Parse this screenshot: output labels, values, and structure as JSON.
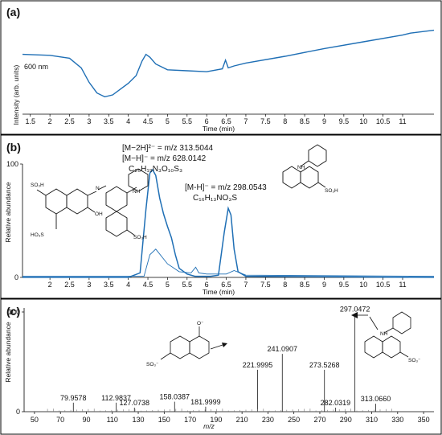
{
  "panel_a": {
    "label": "(a)",
    "ylabel": "Intensity (arb. units)",
    "xlabel": "Time (min)",
    "trace_label": "600 nm",
    "colors": {
      "line": "#1f6fb5"
    }
  },
  "panel_b": {
    "label": "(b)",
    "ylabel": "Relative abundance",
    "xlabel": "Time (min)",
    "annotations": {
      "ion1": "[M−2H]²⁻ = m/z 313.5044",
      "ion2": "[M−H]⁻ = m/z 628.0142",
      "formula1": "C₂₆H₁₉N₃O₁₀S₃",
      "ion3": "[M-H]⁻ = m/z 298.0543",
      "formula2": "C₁₆H₁₃NO₃S"
    },
    "mol_labels": {
      "so3h": "SO₃H",
      "ho3s": "HO₃S",
      "oh": "OH",
      "nh": "NH",
      "n": "N"
    }
  },
  "panel_c": {
    "label": "(c)",
    "ylabel": "Relative abundance",
    "xlabel": "m/z",
    "mol_labels": {
      "so3": "SO₃⁻",
      "o": "O⁻",
      "nh": "NH",
      "o3s": "S"
    }
  },
  "chart_data": [
    {
      "type": "line",
      "panel": "a",
      "xlabel": "Time (min)",
      "ylabel": "Intensity (arb. units)",
      "xlim": [
        1.3,
        11.8
      ],
      "ylim": [
        0,
        100
      ],
      "xticks": [
        1.5,
        2,
        2.5,
        3,
        3.5,
        4,
        4.5,
        5,
        5.5,
        6,
        6.5,
        7,
        7.5,
        8,
        8.5,
        9,
        9.5,
        10,
        10.5,
        11
      ],
      "x": [
        1.3,
        2.0,
        2.5,
        2.8,
        3.0,
        3.2,
        3.4,
        3.6,
        3.8,
        4.0,
        4.2,
        4.35,
        4.45,
        4.55,
        4.7,
        5.0,
        5.5,
        6.0,
        6.4,
        6.48,
        6.55,
        6.7,
        7.0,
        8.0,
        9.0,
        10.0,
        11.0,
        11.2,
        11.8
      ],
      "y": [
        62,
        61,
        58,
        48,
        33,
        22,
        18,
        20,
        26,
        32,
        40,
        55,
        62,
        59,
        52,
        46,
        45,
        44,
        47,
        56,
        48,
        50,
        53,
        60,
        68,
        75,
        82,
        84,
        87
      ],
      "series_label": "600 nm"
    },
    {
      "type": "line",
      "panel": "b",
      "xlabel": "Time (min)",
      "ylabel": "Relative abundance",
      "xlim": [
        1.3,
        11.8
      ],
      "ylim": [
        0,
        100
      ],
      "xticks": [
        2,
        2.5,
        3,
        3.5,
        4,
        4.5,
        5,
        5.5,
        6,
        6.5,
        7,
        7.5,
        8,
        8.5,
        9,
        9.5,
        10,
        10.5,
        11
      ],
      "yticks": [
        0,
        100
      ],
      "series": [
        {
          "x": [
            1.3,
            4.0,
            4.3,
            4.45,
            4.55,
            4.62,
            4.7,
            4.8,
            4.9,
            5.0,
            5.1,
            5.2,
            5.3,
            5.5,
            5.7,
            5.9,
            6.1,
            6.3,
            6.45,
            6.55,
            6.62,
            6.7,
            6.8,
            7.0,
            11.8
          ],
          "y": [
            0,
            0,
            4,
            60,
            92,
            95,
            90,
            70,
            56,
            45,
            35,
            20,
            8,
            3,
            1,
            1,
            1,
            2,
            40,
            61,
            55,
            25,
            5,
            1,
            0
          ]
        },
        {
          "x": [
            1.3,
            4.4,
            4.55,
            4.7,
            5.0,
            5.3,
            5.6,
            5.72,
            5.8,
            6.0,
            6.5,
            6.7,
            7.0,
            11.8
          ],
          "y": [
            1,
            1,
            20,
            25,
            12,
            5,
            4,
            9,
            4,
            3,
            3,
            6,
            2,
            1
          ]
        }
      ]
    },
    {
      "type": "bar",
      "panel": "c",
      "xlabel": "m/z",
      "ylabel": "Relative abundance",
      "xlim": [
        42,
        358
      ],
      "ylim": [
        0,
        100
      ],
      "xticks": [
        50,
        70,
        90,
        110,
        130,
        150,
        170,
        190,
        210,
        230,
        250,
        270,
        290,
        310,
        330,
        350
      ],
      "yticks": [
        0,
        100
      ],
      "peaks": [
        {
          "mz": 79.9578,
          "value": 9,
          "label": "79.9578"
        },
        {
          "mz": 112.9837,
          "value": 9,
          "label": "112.9837"
        },
        {
          "mz": 127.0738,
          "value": 4,
          "label": "127.0738"
        },
        {
          "mz": 158.0387,
          "value": 10,
          "label": "158.0387"
        },
        {
          "mz": 181.9999,
          "value": 5,
          "label": "181.9999"
        },
        {
          "mz": 221.9995,
          "value": 42,
          "label": "221.9995"
        },
        {
          "mz": 241.0907,
          "value": 58,
          "label": "241.0907"
        },
        {
          "mz": 273.5268,
          "value": 42,
          "label": "273.5268"
        },
        {
          "mz": 282.0319,
          "value": 4,
          "label": "282.0319"
        },
        {
          "mz": 297.0472,
          "value": 98,
          "label": "297.0472"
        },
        {
          "mz": 313.066,
          "value": 8,
          "label": "313.0660"
        }
      ]
    }
  ]
}
